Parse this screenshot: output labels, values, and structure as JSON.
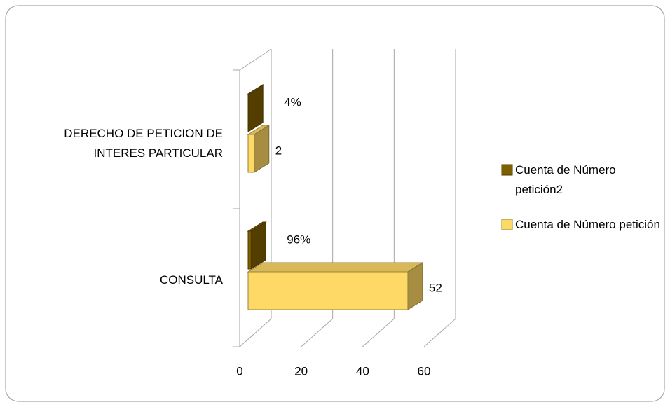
{
  "chart_data": {
    "type": "bar3d_horizontal",
    "categories": [
      "CONSULTA",
      "DERECHO DE PETICION DE INTERES PARTICULAR"
    ],
    "series": [
      {
        "name": "Cuenta de Número petición2",
        "color": "#7f6000",
        "values": [
          0.96,
          0.04
        ],
        "value_labels": [
          "96%",
          "4%"
        ]
      },
      {
        "name": "Cuenta de Número petición",
        "color": "#ffd966",
        "values": [
          52,
          2
        ]
      }
    ],
    "xlim": [
      0,
      60
    ],
    "xticks": [
      0,
      20,
      40,
      60
    ],
    "grid": true,
    "legend": "right"
  }
}
